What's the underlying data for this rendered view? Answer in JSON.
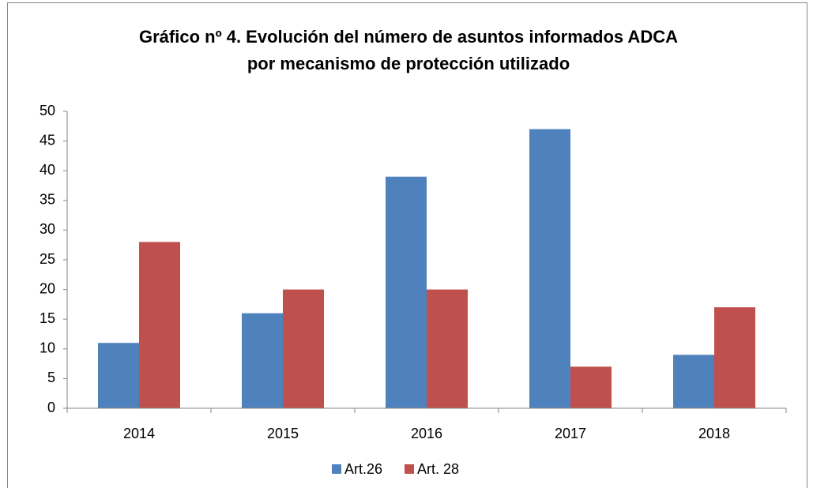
{
  "chart_data": {
    "type": "bar",
    "title": [
      "Gráfico nº 4. Evolución del número de asuntos informados ADCA",
      "por mecanismo de protección utilizado"
    ],
    "categories": [
      "2014",
      "2015",
      "2016",
      "2017",
      "2018"
    ],
    "series": [
      {
        "name": "Art.26",
        "color": "#4f81bd",
        "values": [
          11,
          16,
          39,
          47,
          9
        ]
      },
      {
        "name": "Art. 28",
        "color": "#c0504d",
        "values": [
          28,
          20,
          20,
          7,
          17
        ]
      }
    ],
    "ylim": [
      0,
      50
    ],
    "yticks": [
      0,
      5,
      10,
      15,
      20,
      25,
      30,
      35,
      40,
      45,
      50
    ],
    "grid": false,
    "legend": "bottom"
  }
}
